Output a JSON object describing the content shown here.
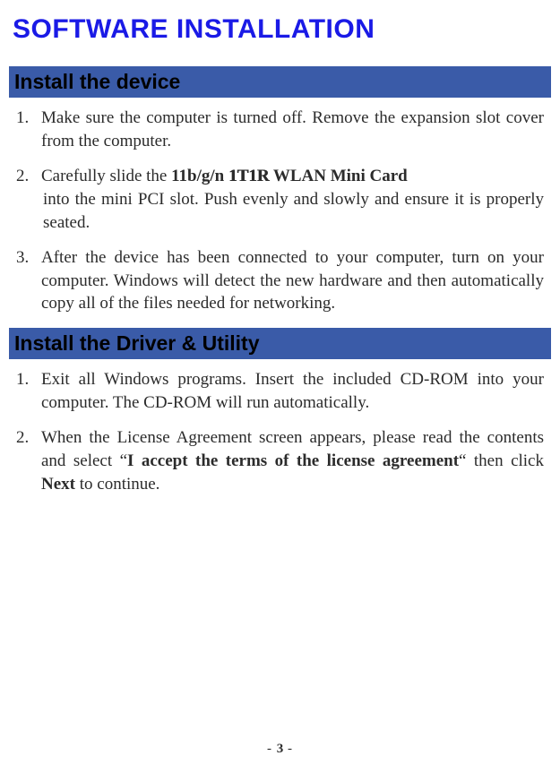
{
  "page_title": "SOFTWARE INSTALLATION",
  "colors": {
    "title": "#1a1ae6",
    "section_bar_bg": "#3a5ba8",
    "section_bar_text": "#000000",
    "body_text": "#2b2b2b",
    "background": "#ffffff"
  },
  "fonts": {
    "title_family": "Arial",
    "title_size_pt": 24,
    "section_size_pt": 18,
    "body_family": "Times New Roman",
    "body_size_pt": 14
  },
  "sections": [
    {
      "heading": "Install the device",
      "items": [
        {
          "num": "1.",
          "segments": [
            {
              "text": "Make sure the computer is turned off. Remove the expansion slot cover from the computer.",
              "style": "normal"
            }
          ]
        },
        {
          "num": "2.",
          "line1_segments": [
            {
              "text": "Carefully slide the ",
              "style": "normal"
            },
            {
              "text": "11b/g/n ",
              "style": "bold"
            },
            {
              "text": "1T1R",
              "style": "bold-outline"
            },
            {
              "text": " WLAN Mini Card",
              "style": "bold"
            }
          ],
          "line2_segments": [
            {
              "text": "into the mini PCI slot. Push evenly and slowly and ensure it is properly seated.",
              "style": "normal"
            }
          ]
        },
        {
          "num": "3.",
          "segments": [
            {
              "text": "After the device has been connected to your computer, turn on your computer. Windows will detect the new hardware and then automatically copy all of the files needed for networking.",
              "style": "normal"
            }
          ]
        }
      ]
    },
    {
      "heading": "Install the Driver & Utility",
      "items": [
        {
          "num": "1.",
          "segments": [
            {
              "text": "Exit all Windows programs. Insert the included CD-ROM into your computer. The CD-ROM will run automatically.",
              "style": "normal"
            }
          ]
        },
        {
          "num": "2.",
          "segments": [
            {
              "text": "When the License Agreement screen appears, please read the contents and select “",
              "style": "normal"
            },
            {
              "text": "I accept the terms of the license agreement",
              "style": "bold"
            },
            {
              "text": "“ then click ",
              "style": "normal"
            },
            {
              "text": "Next",
              "style": "bold"
            },
            {
              "text": " to continue.",
              "style": "normal"
            }
          ]
        }
      ]
    }
  ],
  "page_number": {
    "prefix": "- ",
    "value": "3",
    "suffix": " -"
  }
}
